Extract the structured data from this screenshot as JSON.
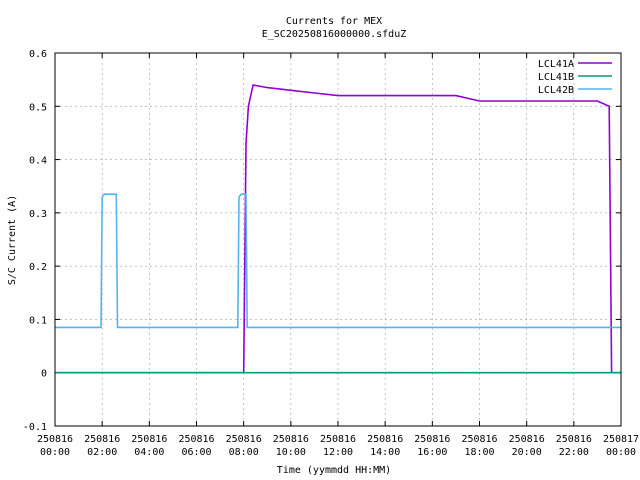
{
  "chart_data": {
    "type": "line",
    "title": "Currents for MEX",
    "subtitle": "E_SC20250816000000.sfduZ",
    "xlabel": "Time (yymmdd HH:MM)",
    "ylabel": "S/C Current (A)",
    "xlim": [
      0,
      24
    ],
    "ylim": [
      -0.1,
      0.6
    ],
    "grid": true,
    "legend_position": "top-right",
    "x_ticks": [
      {
        "value": 0,
        "date": "250816",
        "time": "00:00"
      },
      {
        "value": 2,
        "date": "250816",
        "time": "02:00"
      },
      {
        "value": 4,
        "date": "250816",
        "time": "04:00"
      },
      {
        "value": 6,
        "date": "250816",
        "time": "06:00"
      },
      {
        "value": 8,
        "date": "250816",
        "time": "08:00"
      },
      {
        "value": 10,
        "date": "250816",
        "time": "10:00"
      },
      {
        "value": 12,
        "date": "250816",
        "time": "12:00"
      },
      {
        "value": 14,
        "date": "250816",
        "time": "14:00"
      },
      {
        "value": 16,
        "date": "250816",
        "time": "16:00"
      },
      {
        "value": 18,
        "date": "250816",
        "time": "18:00"
      },
      {
        "value": 20,
        "date": "250816",
        "time": "20:00"
      },
      {
        "value": 22,
        "date": "250816",
        "time": "22:00"
      },
      {
        "value": 24,
        "date": "250817",
        "time": "00:00"
      }
    ],
    "y_ticks": [
      {
        "value": -0.1,
        "label": "-0.1"
      },
      {
        "value": 0,
        "label": "0"
      },
      {
        "value": 0.1,
        "label": "0.1"
      },
      {
        "value": 0.2,
        "label": "0.2"
      },
      {
        "value": 0.3,
        "label": "0.3"
      },
      {
        "value": 0.4,
        "label": "0.4"
      },
      {
        "value": 0.5,
        "label": "0.5"
      },
      {
        "value": 0.6,
        "label": "0.6"
      }
    ],
    "series": [
      {
        "name": "LCL41A",
        "color": "#9400d3",
        "x": [
          0,
          8.0,
          8.1,
          8.2,
          8.4,
          9,
          10,
          11,
          12,
          13,
          14,
          15,
          16,
          17,
          18,
          19,
          20,
          21,
          22,
          23,
          23.5,
          23.6,
          23.8,
          24
        ],
        "y": [
          0,
          0,
          0.43,
          0.5,
          0.54,
          0.535,
          0.53,
          0.525,
          0.52,
          0.52,
          0.52,
          0.52,
          0.52,
          0.52,
          0.51,
          0.51,
          0.51,
          0.51,
          0.51,
          0.51,
          0.5,
          0,
          0,
          0
        ]
      },
      {
        "name": "LCL41B",
        "color": "#009e73",
        "x": [
          0,
          24
        ],
        "y": [
          0,
          0
        ]
      },
      {
        "name": "LCL42B",
        "color": "#56b4e9",
        "x": [
          0,
          1.95,
          2.0,
          2.1,
          2.5,
          2.6,
          2.65,
          7.75,
          7.8,
          7.9,
          8.1,
          8.15,
          8.2,
          24
        ],
        "y": [
          0.085,
          0.085,
          0.33,
          0.335,
          0.335,
          0.335,
          0.085,
          0.085,
          0.33,
          0.335,
          0.335,
          0.085,
          0.085,
          0.085
        ]
      }
    ]
  }
}
